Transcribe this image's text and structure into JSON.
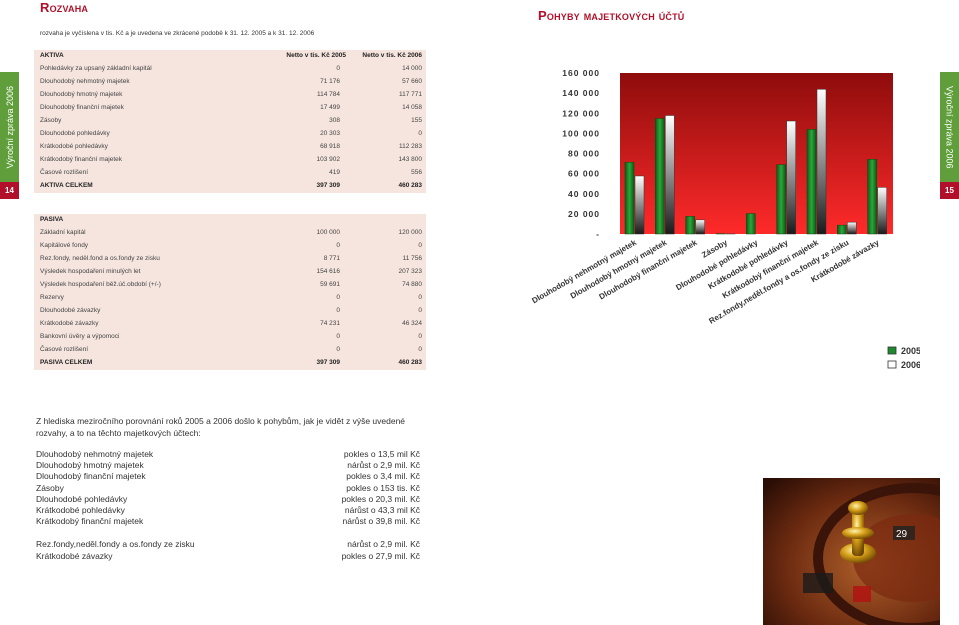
{
  "left_page": {
    "title": "Rozvaha",
    "subtitle": "rozvaha je vyčíslena v tis. Kč a je uvedena ve zkrácené podobě k 31. 12. 2005 a k 31. 12. 2006",
    "sidebar": "Výroční zpráva 2006",
    "page_number": "14"
  },
  "right_page": {
    "title": "Pohyby majetkových účtů",
    "sidebar": "Výroční zpráva 2006",
    "page_number": "15"
  },
  "aktiva": {
    "header": {
      "label": "AKTIVA",
      "col1": "Netto v tis. Kč 2005",
      "col2": "Netto v tis. Kč 2006"
    },
    "rows": [
      {
        "label": "Pohledávky za upsaný základní kapitál",
        "v2005": "0",
        "v2006": "14 000"
      },
      {
        "label": "Dlouhodobý nehmotný majetek",
        "v2005": "71 176",
        "v2006": "57 660"
      },
      {
        "label": "Dlouhodobý hmotný majetek",
        "v2005": "114 784",
        "v2006": "117 771"
      },
      {
        "label": "Dlouhodobý finanční majetek",
        "v2005": "17 499",
        "v2006": "14 058"
      },
      {
        "label": "Zásoby",
        "v2005": "308",
        "v2006": "155"
      },
      {
        "label": "Dlouhodobé pohledávky",
        "v2005": "20 303",
        "v2006": "0"
      },
      {
        "label": "Krátkodobé pohledávky",
        "v2005": "68 918",
        "v2006": "112 283"
      },
      {
        "label": "Krátkodobý finanční majetek",
        "v2005": "103 902",
        "v2006": "143 800"
      },
      {
        "label": "Časové rozlišení",
        "v2005": "419",
        "v2006": "556"
      }
    ],
    "total": {
      "label": "AKTIVA CELKEM",
      "v2005": "397 309",
      "v2006": "460 283"
    }
  },
  "pasiva": {
    "header": {
      "label": "PASIVA"
    },
    "rows": [
      {
        "label": "Základní kapitál",
        "v2005": "100 000",
        "v2006": "120 000"
      },
      {
        "label": "Kapitálové fondy",
        "v2005": "0",
        "v2006": "0"
      },
      {
        "label": "Rez.fondy, neděl.fond a os.fondy ze zisku",
        "v2005": "8 771",
        "v2006": "11 756"
      },
      {
        "label": "Výsledek hospodaření minulých let",
        "v2005": "154 616",
        "v2006": "207 323"
      },
      {
        "label": "Výsledek hospodaření běž.úč.období (+/-)",
        "v2005": "59 691",
        "v2006": "74 880"
      },
      {
        "label": "Rezervy",
        "v2005": "0",
        "v2006": "0"
      },
      {
        "label": "Dlouhodobé závazky",
        "v2005": "0",
        "v2006": "0"
      },
      {
        "label": "Krátkodobé závazky",
        "v2005": "74 231",
        "v2006": "46 324"
      },
      {
        "label": "Bankovní úvěry a výpomoci",
        "v2005": "0",
        "v2006": "0"
      },
      {
        "label": "Časové rozlišení",
        "v2005": "0",
        "v2006": "0"
      }
    ],
    "total": {
      "label": "PASIVA CELKEM",
      "v2005": "397 309",
      "v2006": "460 283"
    }
  },
  "paragraph": "Z hlediska meziročního porovnání roků 2005 a 2006 došlo k pohybům, jak je vidět z výše uvedené rozvahy, a to na těchto majetkových účtech:",
  "movements": [
    {
      "label": "Dlouhodobý nehmotný majetek",
      "value": "pokles o 13,5 mil Kč"
    },
    {
      "label": "Dlouhodobý hmotný majetek",
      "value": "nárůst o 2,9 mil. Kč"
    },
    {
      "label": "Dlouhodobý finanční majetek",
      "value": "pokles o 3,4 mil. Kč"
    },
    {
      "label": "Zásoby",
      "value": "pokles o 153 tis. Kč"
    },
    {
      "label": "Dlouhodobé pohledávky",
      "value": "pokles o 20,3 mil. Kč"
    },
    {
      "label": "Krátkodobé pohledávky",
      "value": "nárůst o 43,3 mil Kč"
    },
    {
      "label": "Krátkodobý finanční majetek",
      "value": "nárůst o 39,8 mil. Kč"
    },
    {
      "label": "Rez.fondy,neděl.fondy a os.fondy ze zisku",
      "value": "nárůst o 2,9 mil. Kč"
    },
    {
      "label": "Krátkodobé závazky",
      "value": "pokles o 27,9 mil. Kč"
    }
  ],
  "colors": {
    "accent": "#b2102a",
    "sidebar": "#5f9e3a",
    "table_bg": "#f6e5df",
    "chart_bg": "#d42020",
    "bar_2005": "#1d8a2e",
    "bar_2006": "#f2f2f2"
  },
  "chart_data": {
    "type": "bar",
    "categories": [
      "Dlouhodobý nehmotný majetek",
      "Dlouhodobý hmotný majetek",
      "Dlouhodobý finanční majetek",
      "Zásoby",
      "Dlouhodobé pohledávky",
      "Krátkodobé pohledávky",
      "Krátkodobý finanční majetek",
      "Rez.fondy,neděl.fondy a os.fondy ze zisku",
      "Krátkodobé závazky"
    ],
    "series": [
      {
        "name": "2005",
        "values": [
          71176,
          114784,
          17499,
          308,
          20303,
          68918,
          103902,
          8771,
          74231
        ]
      },
      {
        "name": "2006",
        "values": [
          57660,
          117771,
          14058,
          155,
          0,
          112283,
          143800,
          11756,
          46324
        ]
      }
    ],
    "y_tick_labels": [
      "160 000",
      "140 000",
      "120 000",
      "100 000",
      "80 000",
      "60 000",
      "40 000",
      "20 000",
      "-"
    ],
    "y_ticks": [
      160000,
      140000,
      120000,
      100000,
      80000,
      60000,
      40000,
      20000,
      0
    ],
    "ylim": [
      0,
      160000
    ],
    "legend_placement": "bottom-right",
    "grid": false
  }
}
